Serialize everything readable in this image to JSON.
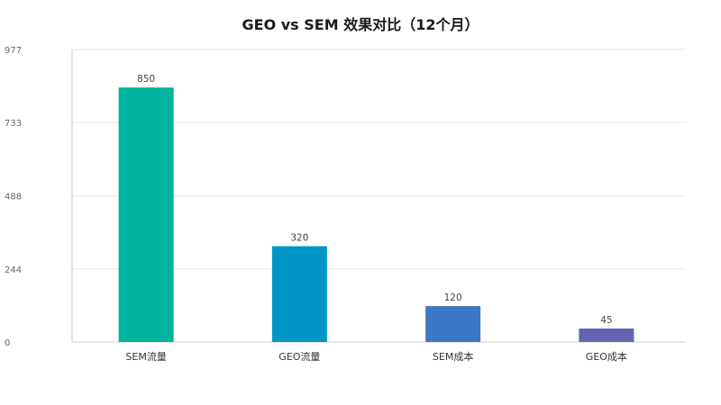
{
  "chart_data": {
    "type": "bar",
    "title": "GEO vs SEM 效果对比（12个月）",
    "categories": [
      "SEM流量",
      "GEO流量",
      "SEM成本",
      "GEO成本"
    ],
    "values": [
      850,
      320,
      120,
      45
    ],
    "bar_colors": [
      "#00b39f",
      "#0096c8",
      "#3c78c8",
      "#6464b4"
    ],
    "ylim": [
      0,
      977
    ],
    "yticks": [
      "0",
      "244",
      "488",
      "733",
      "977"
    ],
    "ytick_values": [
      0,
      244,
      488,
      733,
      977
    ],
    "xlabel": "",
    "ylabel": "",
    "grid": true,
    "legend": "none"
  }
}
